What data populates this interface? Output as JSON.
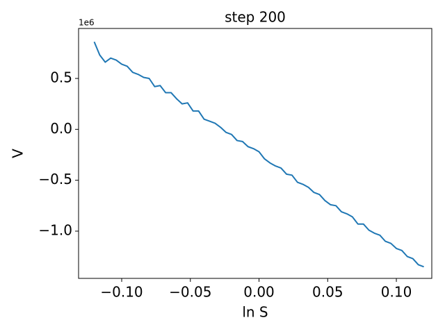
{
  "chart_data": {
    "type": "line",
    "title": "step 200",
    "x_label": "ln S",
    "y_label": "V",
    "y_offset_label": "1e6",
    "x": [
      -0.12,
      -0.116,
      -0.112,
      -0.108,
      -0.104,
      -0.1,
      -0.096,
      -0.092,
      -0.088,
      -0.084,
      -0.08,
      -0.076,
      -0.072,
      -0.068,
      -0.064,
      -0.06,
      -0.056,
      -0.052,
      -0.048,
      -0.044,
      -0.04,
      -0.036,
      -0.032,
      -0.028,
      -0.024,
      -0.02,
      -0.016,
      -0.012,
      -0.008,
      -0.004,
      0.0,
      0.004,
      0.008,
      0.012,
      0.016,
      0.02,
      0.024,
      0.028,
      0.032,
      0.036,
      0.04,
      0.044,
      0.048,
      0.052,
      0.056,
      0.06,
      0.064,
      0.068,
      0.072,
      0.076,
      0.08,
      0.084,
      0.088,
      0.092,
      0.096,
      0.1,
      0.104,
      0.108,
      0.112,
      0.116,
      0.12
    ],
    "series": [
      {
        "color": "#1f77b4",
        "values": [
          0.86,
          0.73,
          0.66,
          0.7,
          0.68,
          0.64,
          0.62,
          0.56,
          0.54,
          0.51,
          0.5,
          0.42,
          0.43,
          0.36,
          0.36,
          0.3,
          0.25,
          0.26,
          0.18,
          0.18,
          0.1,
          0.08,
          0.06,
          0.02,
          -0.03,
          -0.05,
          -0.11,
          -0.12,
          -0.17,
          -0.19,
          -0.22,
          -0.29,
          -0.33,
          -0.36,
          -0.38,
          -0.44,
          -0.45,
          -0.52,
          -0.54,
          -0.57,
          -0.62,
          -0.64,
          -0.7,
          -0.74,
          -0.75,
          -0.81,
          -0.83,
          -0.86,
          -0.93,
          -0.93,
          -0.99,
          -1.02,
          -1.04,
          -1.1,
          -1.12,
          -1.17,
          -1.19,
          -1.25,
          -1.27,
          -1.33,
          -1.35
        ]
      }
    ],
    "xlim": [
      -0.1314,
      0.1258
    ],
    "ylim": [
      -1.464,
      0.991
    ],
    "xticks": [
      {
        "value": -0.1,
        "label": "−0.10"
      },
      {
        "value": -0.05,
        "label": "−0.05"
      },
      {
        "value": 0.0,
        "label": "0.00"
      },
      {
        "value": 0.05,
        "label": "0.05"
      },
      {
        "value": 0.1,
        "label": "0.10"
      }
    ],
    "yticks": [
      {
        "value": -1.0,
        "label": "−1.0"
      },
      {
        "value": -0.5,
        "label": "−0.5"
      },
      {
        "value": 0.0,
        "label": "0.0"
      },
      0.5
    ],
    "grid": false
  }
}
